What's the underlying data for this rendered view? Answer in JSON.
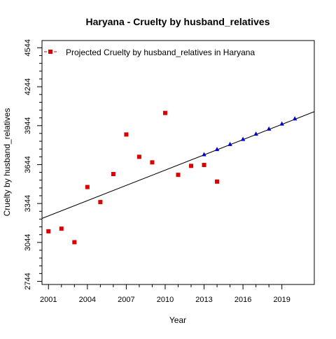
{
  "chart_data": {
    "type": "scatter",
    "title": "Haryana  -  Cruelty by husband_relatives",
    "xlabel": "Year",
    "ylabel": "Cruelty by husband_relatives",
    "xlim": [
      2000.5,
      2021.5
    ],
    "ylim": [
      2720,
      4600
    ],
    "x_ticks": [
      2001,
      2004,
      2007,
      2010,
      2013,
      2016,
      2019
    ],
    "y_ticks": [
      2744,
      3044,
      3344,
      3644,
      3944,
      4244,
      4544
    ],
    "grid": false,
    "legend": {
      "position": "top-left",
      "entries": [
        "Projected  Cruelty by husband_relatives  in  Haryana"
      ]
    },
    "series": [
      {
        "name": "Projected  Cruelty by husband_relatives  in  Haryana",
        "kind": "observed",
        "color": "#dd0000",
        "marker": "square",
        "points": [
          [
            2001,
            3130
          ],
          [
            2002,
            3150
          ],
          [
            2003,
            3046
          ],
          [
            2004,
            3471
          ],
          [
            2005,
            3355
          ],
          [
            2006,
            3571
          ],
          [
            2007,
            3876
          ],
          [
            2008,
            3704
          ],
          [
            2009,
            3661
          ],
          [
            2010,
            4042
          ],
          [
            2011,
            3565
          ],
          [
            2012,
            3634
          ],
          [
            2013,
            3641
          ],
          [
            2014,
            3513
          ]
        ]
      },
      {
        "kind": "projected",
        "color": "#0000cc",
        "marker": "triangle",
        "points": [
          [
            2013,
            3722
          ],
          [
            2014,
            3762
          ],
          [
            2015,
            3801
          ],
          [
            2016,
            3840
          ],
          [
            2017,
            3880
          ],
          [
            2018,
            3919
          ],
          [
            2019,
            3958
          ],
          [
            2020,
            3998
          ]
        ]
      }
    ],
    "trend_line": {
      "color": "#000000",
      "points": [
        [
          2000.5,
          3229
        ],
        [
          2021.5,
          4052
        ]
      ]
    }
  }
}
